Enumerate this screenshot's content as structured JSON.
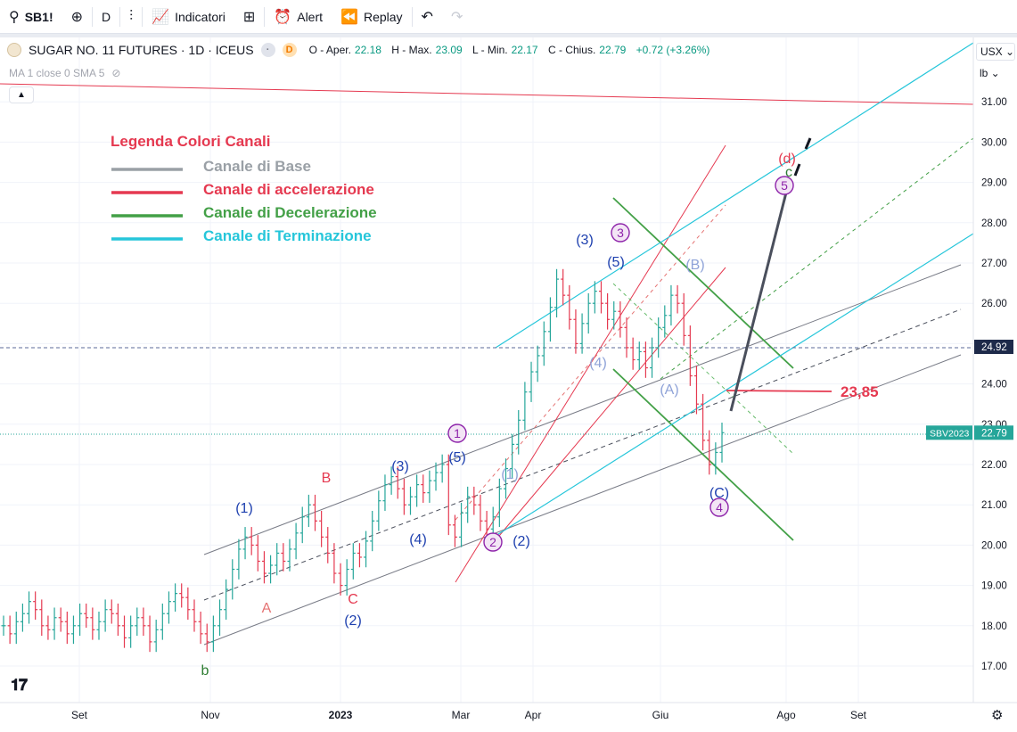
{
  "toolbar": {
    "symbol": "SB1!",
    "interval": "D",
    "indicators_label": "Indicatori",
    "alert_label": "Alert",
    "replay_label": "Replay"
  },
  "legend_header": {
    "title": "SUGAR NO. 11 FUTURES · 1D · ICEUS",
    "open_label": "O - Aper.",
    "open_value": "22.18",
    "high_label": "H - Max.",
    "high_value": "23.09",
    "low_label": "L - Min.",
    "low_value": "22.17",
    "close_label": "C - Chius.",
    "close_value": "22.79",
    "change": "+0.72 (+3.26%)",
    "ma_text": "MA 1 close 0 SMA 5"
  },
  "price_scale": {
    "currency": "USX",
    "unit": "lb"
  },
  "chart_data": {
    "type": "ohlc",
    "title": "SUGAR NO. 11 FUTURES · 1D · ICEUS",
    "x_ticks": [
      "Set",
      "Nov",
      "2023",
      "Mar",
      "Apr",
      "Giu",
      "Ago",
      "Set"
    ],
    "y_ticks": [
      "17.00",
      "18.00",
      "19.00",
      "20.00",
      "21.00",
      "22.00",
      "23.00",
      "24.00",
      "25.00",
      "26.00",
      "27.00",
      "28.00",
      "29.00",
      "30.00",
      "31.00"
    ],
    "ylim": [
      16.2,
      31.9
    ],
    "price_labels": [
      {
        "text": "24.92",
        "value": 24.92,
        "kind": "level"
      },
      {
        "text": "22.79",
        "value": 22.79,
        "kind": "last",
        "series": "SBV2023"
      }
    ],
    "level_annotation": {
      "text": "23,85",
      "value": 23.85
    },
    "channel_legend": {
      "title": "Legenda Colori Canali",
      "items": [
        {
          "label": "Canale di Base",
          "color": "#9aa0a6"
        },
        {
          "label": "Canale di accelerazione",
          "color": "#e53950"
        },
        {
          "label": "Canale di Decelerazione",
          "color": "#43a047"
        },
        {
          "label": "Canale di Terminazione",
          "color": "#26c6da"
        }
      ]
    },
    "wave_labels": [
      {
        "text": "(1)",
        "color": "#1e40af"
      },
      {
        "text": "B",
        "color": "#e53950"
      },
      {
        "text": "(3)",
        "color": "#1e40af"
      },
      {
        "text": "(5)",
        "color": "#1e40af"
      },
      {
        "text": "A",
        "color": "#e57373"
      },
      {
        "text": "C",
        "color": "#e53950"
      },
      {
        "text": "(2)",
        "color": "#1e40af"
      },
      {
        "text": "(4)",
        "color": "#1e40af"
      },
      {
        "text": "b",
        "color": "#2e7d32"
      },
      {
        "text": "(1)",
        "color": "#8fa3d8"
      },
      {
        "text": "(2)",
        "color": "#1e40af"
      },
      {
        "text": "(3)",
        "color": "#1e40af"
      },
      {
        "text": "(5)",
        "color": "#1e40af"
      },
      {
        "text": "(4)",
        "color": "#8fa3d8"
      },
      {
        "text": "(B)",
        "color": "#8fa3d8"
      },
      {
        "text": "(A)",
        "color": "#8fa3d8"
      },
      {
        "text": "(C)",
        "color": "#1e40af"
      },
      {
        "text": "(d)",
        "color": "#e53950"
      },
      {
        "text": "c",
        "color": "#2e7d32"
      },
      {
        "text": "1",
        "color": "#8e24aa"
      },
      {
        "text": "2",
        "color": "#8e24aa"
      },
      {
        "text": "3",
        "color": "#8e24aa"
      },
      {
        "text": "4",
        "color": "#8e24aa"
      },
      {
        "text": "5",
        "color": "#8e24aa"
      }
    ],
    "bars": [
      {
        "date": "2022-08",
        "close": 18.0
      },
      {
        "date": "2022-08",
        "close": 17.8
      },
      {
        "date": "2022-08",
        "close": 18.1
      },
      {
        "date": "2022-08",
        "close": 18.3
      },
      {
        "date": "2022-08",
        "close": 18.6
      },
      {
        "date": "2022-08",
        "close": 18.4
      },
      {
        "date": "2022-08",
        "close": 18.0
      },
      {
        "date": "2022-08",
        "close": 17.9
      },
      {
        "date": "2022-09",
        "close": 18.2
      },
      {
        "date": "2022-09",
        "close": 18.1
      },
      {
        "date": "2022-09",
        "close": 17.8
      },
      {
        "date": "2022-09",
        "close": 18.0
      },
      {
        "date": "2022-09",
        "close": 18.3
      },
      {
        "date": "2022-09",
        "close": 18.2
      },
      {
        "date": "2022-09",
        "close": 17.9
      },
      {
        "date": "2022-09",
        "close": 18.1
      },
      {
        "date": "2022-09",
        "close": 18.4
      },
      {
        "date": "2022-09",
        "close": 18.3
      },
      {
        "date": "2022-09",
        "close": 18.0
      },
      {
        "date": "2022-09",
        "close": 17.7
      },
      {
        "date": "2022-09",
        "close": 18.0
      },
      {
        "date": "2022-09",
        "close": 18.2
      },
      {
        "date": "2022-10",
        "close": 18.0
      },
      {
        "date": "2022-10",
        "close": 17.6
      },
      {
        "date": "2022-10",
        "close": 17.9
      },
      {
        "date": "2022-10",
        "close": 18.3
      },
      {
        "date": "2022-10",
        "close": 18.6
      },
      {
        "date": "2022-10",
        "close": 18.8
      },
      {
        "date": "2022-10",
        "close": 18.7
      },
      {
        "date": "2022-10",
        "close": 18.4
      },
      {
        "date": "2022-10",
        "close": 18.1
      },
      {
        "date": "2022-10",
        "close": 17.8
      },
      {
        "date": "2022-10",
        "close": 17.6
      },
      {
        "date": "2022-11",
        "close": 18.0
      },
      {
        "date": "2022-11",
        "close": 18.4
      },
      {
        "date": "2022-11",
        "close": 18.9
      },
      {
        "date": "2022-11",
        "close": 19.4
      },
      {
        "date": "2022-11",
        "close": 19.9
      },
      {
        "date": "2022-11",
        "close": 20.2
      },
      {
        "date": "2022-11",
        "close": 20.0
      },
      {
        "date": "2022-11",
        "close": 19.6
      },
      {
        "date": "2022-11",
        "close": 19.3
      },
      {
        "date": "2022-11",
        "close": 19.5
      },
      {
        "date": "2022-11",
        "close": 19.8
      },
      {
        "date": "2022-11",
        "close": 19.6
      },
      {
        "date": "2022-12",
        "close": 19.9
      },
      {
        "date": "2022-12",
        "close": 20.3
      },
      {
        "date": "2022-12",
        "close": 20.7
      },
      {
        "date": "2022-12",
        "close": 21.0
      },
      {
        "date": "2022-12",
        "close": 20.6
      },
      {
        "date": "2022-12",
        "close": 20.2
      },
      {
        "date": "2022-12",
        "close": 19.8
      },
      {
        "date": "2022-12",
        "close": 19.3
      },
      {
        "date": "2023-01",
        "close": 19.0
      },
      {
        "date": "2023-01",
        "close": 19.4
      },
      {
        "date": "2023-01",
        "close": 19.8
      },
      {
        "date": "2023-01",
        "close": 19.7
      },
      {
        "date": "2023-01",
        "close": 20.1
      },
      {
        "date": "2023-01",
        "close": 20.6
      },
      {
        "date": "2023-01",
        "close": 21.1
      },
      {
        "date": "2023-01",
        "close": 21.5
      },
      {
        "date": "2023-01",
        "close": 21.7
      },
      {
        "date": "2023-02",
        "close": 21.4
      },
      {
        "date": "2023-02",
        "close": 21.0
      },
      {
        "date": "2023-02",
        "close": 21.2
      },
      {
        "date": "2023-02",
        "close": 21.5
      },
      {
        "date": "2023-02",
        "close": 21.3
      },
      {
        "date": "2023-02",
        "close": 21.6
      },
      {
        "date": "2023-02",
        "close": 21.8
      },
      {
        "date": "2023-02",
        "close": 22.0
      },
      {
        "date": "2023-03",
        "close": 20.5
      },
      {
        "date": "2023-03",
        "close": 20.2
      },
      {
        "date": "2023-03",
        "close": 20.8
      },
      {
        "date": "2023-03",
        "close": 21.2
      },
      {
        "date": "2023-03",
        "close": 21.0
      },
      {
        "date": "2023-03",
        "close": 20.6
      },
      {
        "date": "2023-03",
        "close": 20.4
      },
      {
        "date": "2023-03",
        "close": 20.7
      },
      {
        "date": "2023-03",
        "close": 21.4
      },
      {
        "date": "2023-03",
        "close": 21.9
      },
      {
        "date": "2023-03",
        "close": 22.5
      },
      {
        "date": "2023-04",
        "close": 23.1
      },
      {
        "date": "2023-04",
        "close": 23.8
      },
      {
        "date": "2023-04",
        "close": 24.3
      },
      {
        "date": "2023-04",
        "close": 24.7
      },
      {
        "date": "2023-04",
        "close": 25.3
      },
      {
        "date": "2023-04",
        "close": 25.9
      },
      {
        "date": "2023-04",
        "close": 26.6
      },
      {
        "date": "2023-04",
        "close": 26.2
      },
      {
        "date": "2023-04",
        "close": 25.6
      },
      {
        "date": "2023-04",
        "close": 25.0
      },
      {
        "date": "2023-05",
        "close": 25.5
      },
      {
        "date": "2023-05",
        "close": 26.0
      },
      {
        "date": "2023-05",
        "close": 26.3
      },
      {
        "date": "2023-05",
        "close": 26.0
      },
      {
        "date": "2023-05",
        "close": 25.6
      },
      {
        "date": "2023-05",
        "close": 25.8
      },
      {
        "date": "2023-05",
        "close": 25.4
      },
      {
        "date": "2023-05",
        "close": 24.9
      },
      {
        "date": "2023-05",
        "close": 24.6
      },
      {
        "date": "2023-05",
        "close": 24.8
      },
      {
        "date": "2023-06",
        "close": 24.4
      },
      {
        "date": "2023-06",
        "close": 24.9
      },
      {
        "date": "2023-06",
        "close": 25.4
      },
      {
        "date": "2023-06",
        "close": 25.7
      },
      {
        "date": "2023-06",
        "close": 26.2
      },
      {
        "date": "2023-06",
        "close": 26.0
      },
      {
        "date": "2023-06",
        "close": 25.2
      },
      {
        "date": "2023-06",
        "close": 24.2
      },
      {
        "date": "2023-06",
        "close": 23.5
      },
      {
        "date": "2023-06",
        "close": 22.6
      },
      {
        "date": "2023-06",
        "close": 22.0
      },
      {
        "date": "2023-07",
        "close": 22.3
      },
      {
        "date": "2023-07",
        "close": 22.79
      }
    ]
  }
}
